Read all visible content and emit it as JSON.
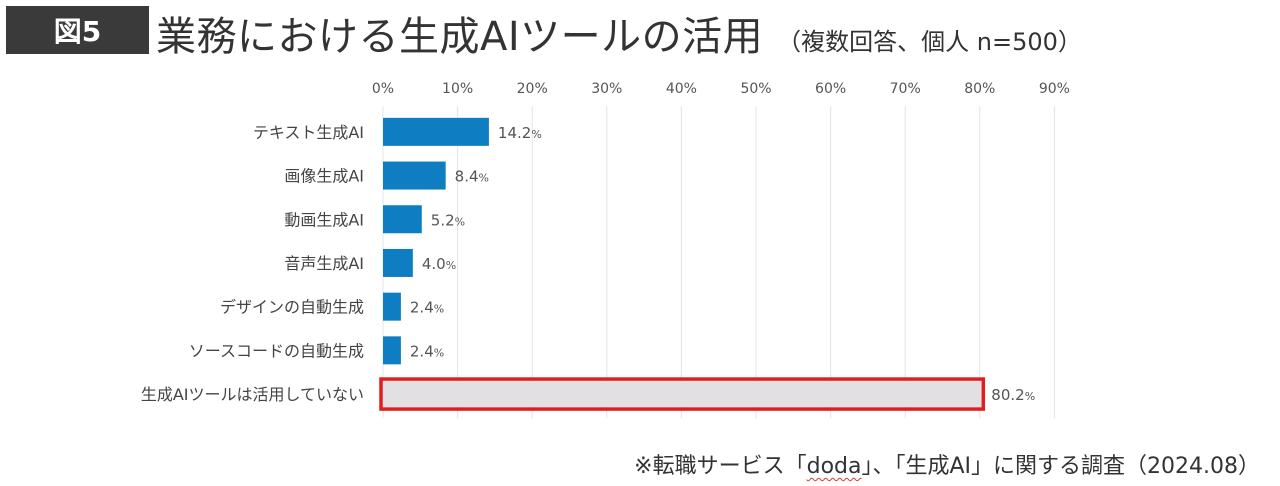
{
  "header": {
    "badge": "図5",
    "title": "業務における生成AIツールの活用",
    "subtitle": "（複数回答、個人 n=500）"
  },
  "footnote": {
    "prefix": "※転職サービス「",
    "service": "doda",
    "suffix": "」、「生成AI」に関する調査（2024.08）"
  },
  "colors": {
    "bar": "#0e7dc2",
    "highlight_bar": "#e3e0e3",
    "highlight_border": "#e01e1e",
    "grid": "#e4e4e4"
  },
  "chart_data": {
    "type": "bar",
    "orientation": "horizontal",
    "title": "業務における生成AIツールの活用",
    "xlim": [
      0,
      90
    ],
    "x_ticks": [
      "0%",
      "10%",
      "20%",
      "30%",
      "40%",
      "50%",
      "60%",
      "70%",
      "80%",
      "90%"
    ],
    "categories": [
      "テキスト生成AI",
      "画像生成AI",
      "動画生成AI",
      "音声生成AI",
      "デザインの自動生成",
      "ソースコードの自動生成",
      "生成AIツールは活用していない"
    ],
    "values": [
      14.2,
      8.4,
      5.2,
      4.0,
      2.4,
      2.4,
      80.2
    ],
    "value_labels": [
      "14.2",
      "8.4",
      "5.2",
      "4.0",
      "2.4",
      "2.4",
      "80.2"
    ],
    "highlight_index": 6,
    "grid": true
  }
}
